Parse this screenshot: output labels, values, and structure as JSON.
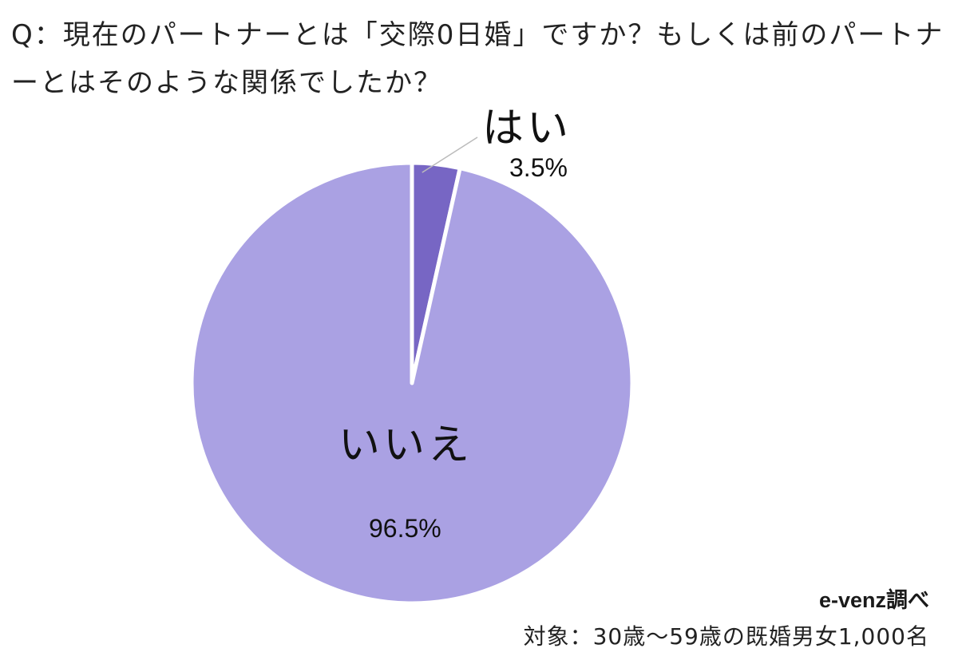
{
  "title": "Q：現在のパートナーとは「交際0日婚」ですか？もしくは前のパートナーとはそのような関係でしたか？",
  "source_label": "e-venz調べ",
  "target_label": "対象：30歳〜59歳の既婚男女1,000名",
  "colors": {
    "slice_yes": "#7766c4",
    "slice_no": "#aaa1e3",
    "separator": "#ffffff",
    "leader_line": "#bbbbbb"
  },
  "chart_data": {
    "type": "pie",
    "title": "Q：現在のパートナーとは「交際0日婚」ですか？もしくは前のパートナーとはそのような関係でしたか？",
    "categories": [
      "はい",
      "いいえ"
    ],
    "values": [
      3.5,
      96.5
    ],
    "value_labels": [
      "3.5%",
      "96.5%"
    ],
    "start_angle_deg": 0,
    "direction": "clockwise"
  }
}
